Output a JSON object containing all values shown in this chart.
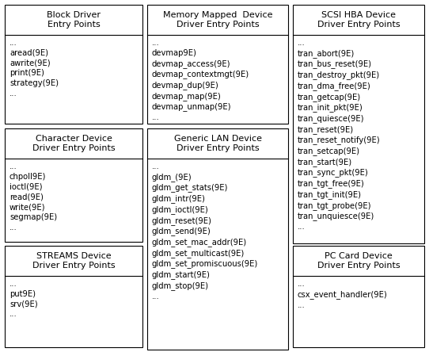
{
  "boxes": [
    {
      "title": "Block Driver\nEntry Points",
      "content": "...\naread(9E)\nawrite(9E)\nprint(9E)\nstrategy(9E)\n...",
      "col": 0,
      "row": 0,
      "rowspan": 1
    },
    {
      "title": "Character Device\nDriver Entry Points",
      "content": "...\nchpoll9E)\nioctl(9E)\nread(9E)\nwrite(9E)\nsegmap(9E)\n...",
      "col": 0,
      "row": 1,
      "rowspan": 1
    },
    {
      "title": "STREAMS Device\nDriver Entry Points",
      "content": "...\nput9E)\nsrv(9E)\n...",
      "col": 0,
      "row": 2,
      "rowspan": 1
    },
    {
      "title": "Memory Mapped  Device\nDriver Entry Points",
      "content": "...\ndevmap9E)\ndevmap_access(9E)\ndevmap_contextmgt(9E)\ndevmap_dup(9E)\ndevmap_map(9E)\ndevmap_unmap(9E)\n...",
      "col": 1,
      "row": 0,
      "rowspan": 1
    },
    {
      "title": "Generic LAN Device\nDriver Entry Points",
      "content": "...\ngldm_(9E)\ngldm_get_stats(9E)\ngldm_intr(9E)\ngldm_ioctl(9E)\ngldm_reset(9E)\ngldm_send(9E)\ngldm_set_mac_addr(9E)\ngldm_set_multicast(9E)\ngldm_set_promiscuous(9E)\ngldm_start(9E)\ngldm_stop(9E)\n...",
      "col": 1,
      "row": 1,
      "rowspan": 2
    },
    {
      "title": "SCSI HBA Device\nDriver Entry Points",
      "content": "...\ntran_abort(9E)\ntran_bus_reset(9E)\ntran_destroy_pkt(9E)\ntran_dma_free(9E)\ntran_getcap(9E)\ntran_init_pkt(9E)\ntran_quiesce(9E)\ntran_reset(9E)\ntran_reset_notify(9E)\ntran_setcap(9E)\ntran_start(9E)\ntran_sync_pkt(9E)\ntran_tgt_free(9E)\ntran_tgt_init(9E)\ntran_tgt_probe(9E)\ntran_unquiesce(9E)\n...",
      "col": 2,
      "row": 0,
      "rowspan": 2
    },
    {
      "title": "PC Card Device\nDriver Entry Points",
      "content": "...\ncsx_event_handler(9E)\n...",
      "col": 2,
      "row": 2,
      "rowspan": 1
    }
  ],
  "bg_color": "#ffffff",
  "box_facecolor": "#ffffff",
  "box_edgecolor": "#000000",
  "title_fontsize": 8.0,
  "content_fontsize": 7.2
}
